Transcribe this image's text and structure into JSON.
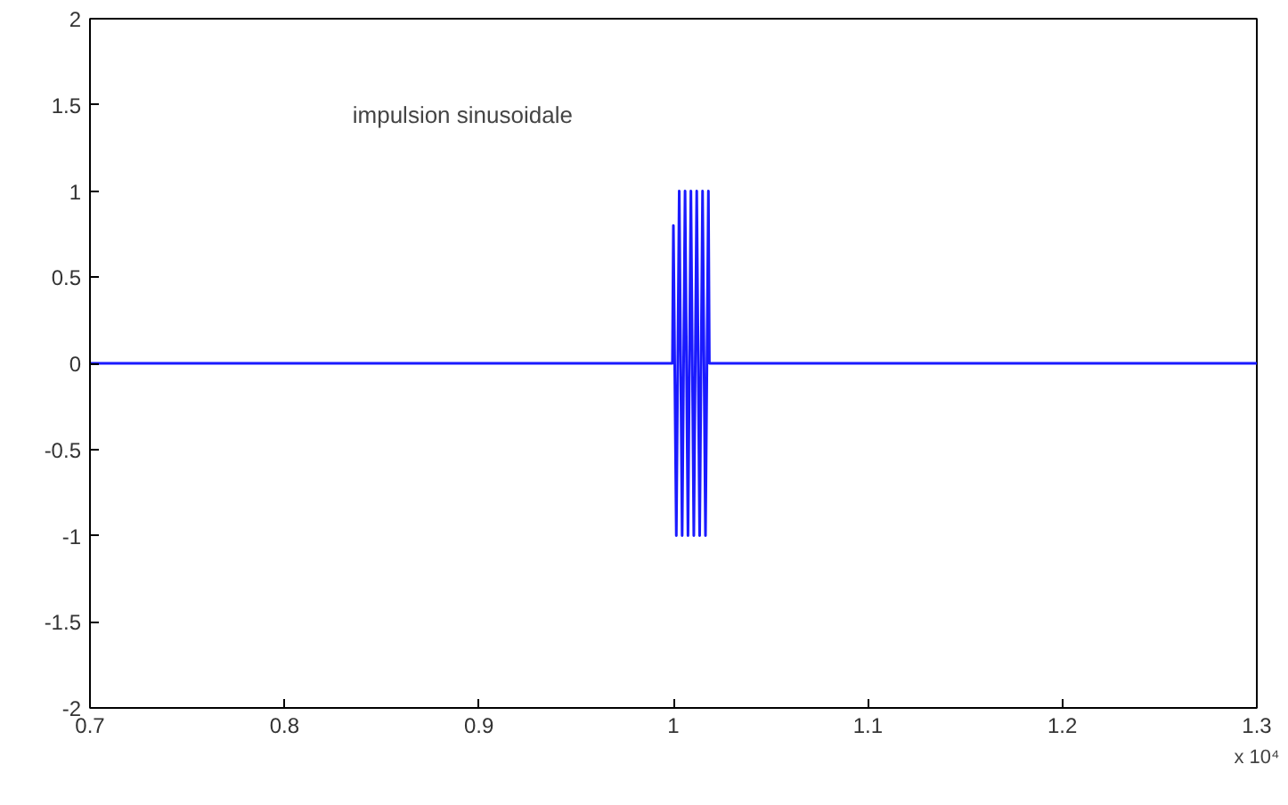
{
  "chart_data": {
    "type": "line",
    "xlabel": "x 10⁴",
    "annotations": [
      "impulsion sinusoidale"
    ],
    "series": [
      {
        "color": "#1a1aff",
        "x": [
          0.7,
          0.9995,
          1.0,
          1.0015,
          1.003,
          1.0045,
          1.006,
          1.0075,
          1.009,
          1.0105,
          1.012,
          1.0135,
          1.015,
          1.0165,
          1.018,
          1.0185,
          1.3
        ],
        "values": [
          0,
          0,
          0.8,
          -1,
          1,
          -1,
          1,
          -1,
          1,
          -1,
          1,
          -1,
          1,
          -1,
          1,
          0,
          0
        ]
      }
    ],
    "xlim": [
      0.7,
      1.3
    ],
    "xticks": [
      0.7,
      0.8,
      0.9,
      1,
      1.1,
      1.2,
      1.3
    ],
    "ylim": [
      -2,
      2
    ],
    "yticks": [
      -2,
      -1.5,
      -1,
      -0.5,
      0,
      0.5,
      1,
      1.5,
      2
    ],
    "grid": false,
    "marker": "none",
    "line_style": "solid"
  }
}
